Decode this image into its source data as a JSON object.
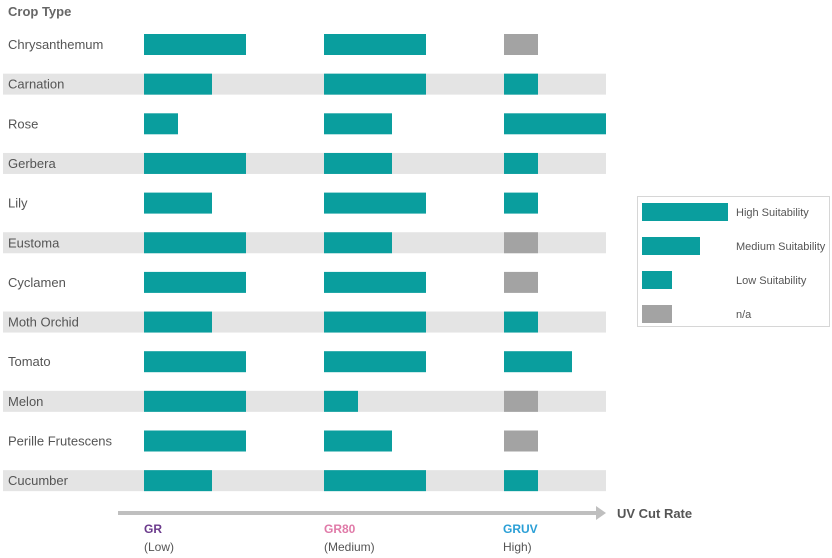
{
  "chart_data": {
    "type": "bar",
    "title": "Crop Type",
    "xlabel": "UV Cut Rate",
    "categories": [
      "Chrysanthemum",
      "Carnation",
      "Rose",
      "Gerbera",
      "Lily",
      "Eustoma",
      "Cyclamen",
      "Moth Orchid",
      "Tomato",
      "Melon",
      "Perille Frutescens",
      "Cucumber"
    ],
    "groups": [
      {
        "name": "GR",
        "sub": "(Low)",
        "color": "#6b3a8c"
      },
      {
        "name": "GR80",
        "sub": "(Medium)",
        "color": "#e07aa8"
      },
      {
        "name": "GRUV",
        "sub": "High)",
        "color": "#2a9fd6"
      }
    ],
    "levels_note": "Values: 3 = High Suitability, 2 = Medium Suitability, 1 = Low Suitability, 0 = n/a",
    "values": {
      "GR": [
        3,
        2,
        1,
        3,
        2,
        3,
        3,
        2,
        3,
        3,
        3,
        2
      ],
      "GR80": [
        3,
        3,
        2,
        2,
        3,
        2,
        3,
        3,
        3,
        1,
        2,
        3
      ],
      "GRUV": [
        0,
        1,
        3,
        1,
        1,
        0,
        0,
        1,
        2,
        0,
        0,
        1
      ]
    },
    "legend": [
      {
        "label": "High Suitability",
        "level": 3
      },
      {
        "label": "Medium Suitability",
        "level": 2
      },
      {
        "label": "Low Suitability",
        "level": 1
      },
      {
        "label": "n/a",
        "level": 0
      }
    ],
    "colors": {
      "bar": "#0a9e9e",
      "na": "#a3a3a3",
      "band": "#e4e4e4",
      "text": "#555555",
      "arrow": "#bfbfbf"
    }
  }
}
